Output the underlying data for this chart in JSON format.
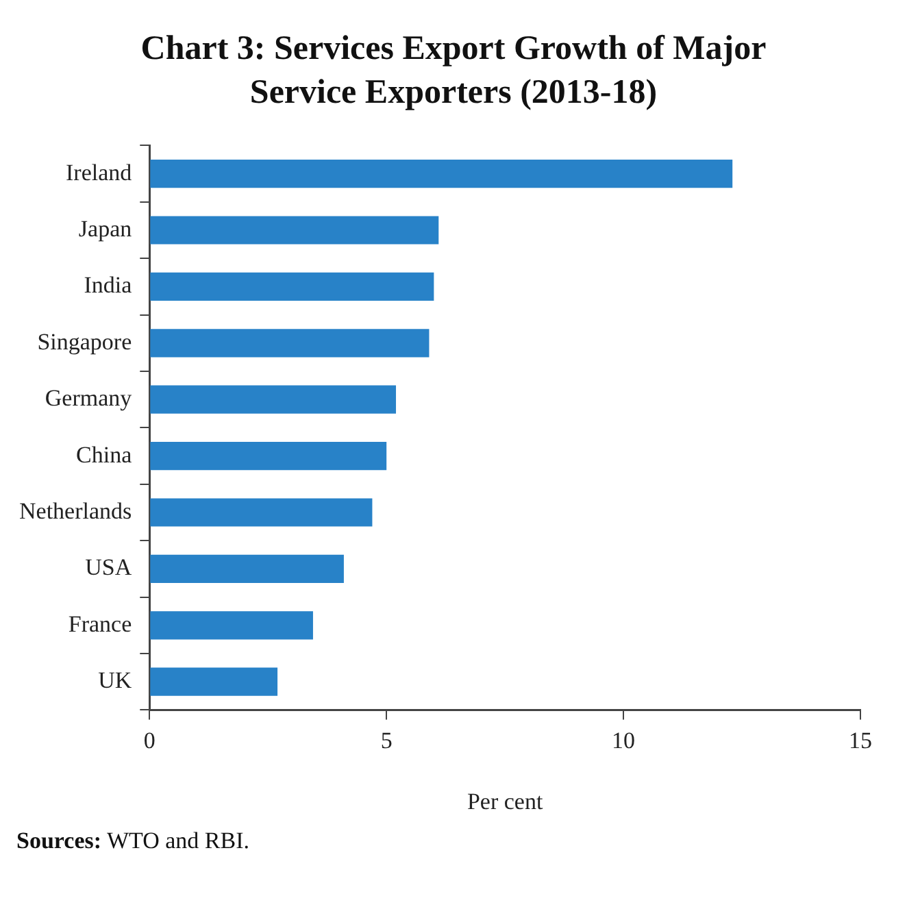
{
  "chart_data": {
    "type": "bar",
    "orientation": "horizontal",
    "title": "Chart 3: Services Export Growth of Major Service Exporters (2013-18)",
    "xlabel": "Per cent",
    "categories": [
      "Ireland",
      "Japan",
      "India",
      "Singapore",
      "Germany",
      "China",
      "Netherlands",
      "USA",
      "France",
      "UK"
    ],
    "values": [
      12.3,
      6.1,
      6.0,
      5.9,
      5.2,
      5.0,
      4.7,
      4.1,
      3.45,
      2.7
    ],
    "color": "#2882c8",
    "xlim": [
      0,
      15
    ],
    "xticks": [
      0,
      5,
      10,
      15
    ],
    "grid": false,
    "annotations": [
      "Sources: WTO and RBI."
    ]
  }
}
